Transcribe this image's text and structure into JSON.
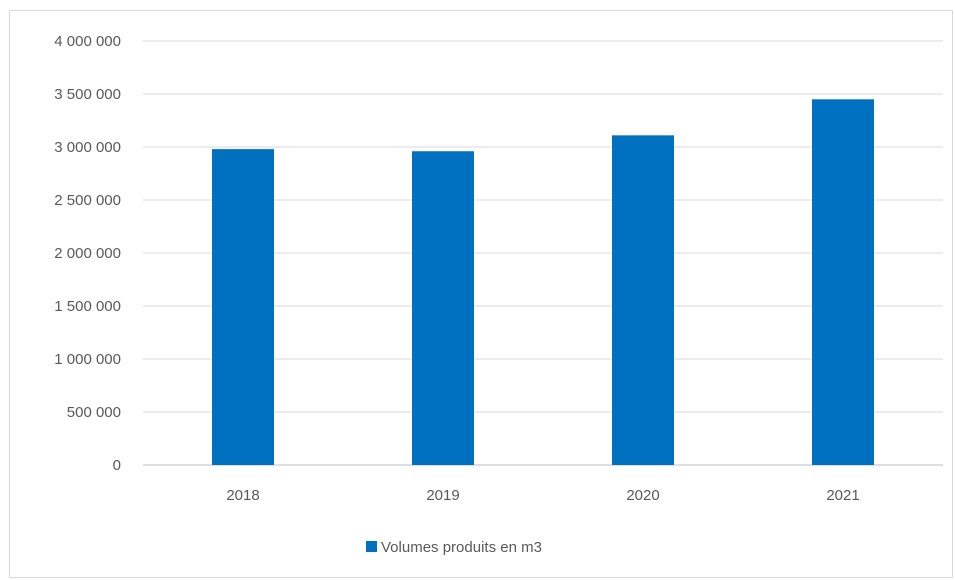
{
  "chart_data": {
    "type": "bar",
    "categories": [
      "2018",
      "2019",
      "2020",
      "2021"
    ],
    "series": [
      {
        "name": "Volumes produits en m3",
        "color": "#0070C0",
        "values": [
          2980000,
          2960000,
          3110000,
          3450000
        ]
      }
    ],
    "ylim": [
      0,
      4000000
    ],
    "y_ticks": [
      0,
      500000,
      1000000,
      1500000,
      2000000,
      2500000,
      3000000,
      3500000,
      4000000
    ],
    "y_tick_labels": [
      "0",
      "500 000",
      "1 000 000",
      "1 500 000",
      "2 000 000",
      "2 500 000",
      "3 000 000",
      "3 500 000",
      "4 000 000"
    ],
    "grid": true,
    "legend_position": "bottom",
    "title": "",
    "xlabel": "",
    "ylabel": ""
  }
}
